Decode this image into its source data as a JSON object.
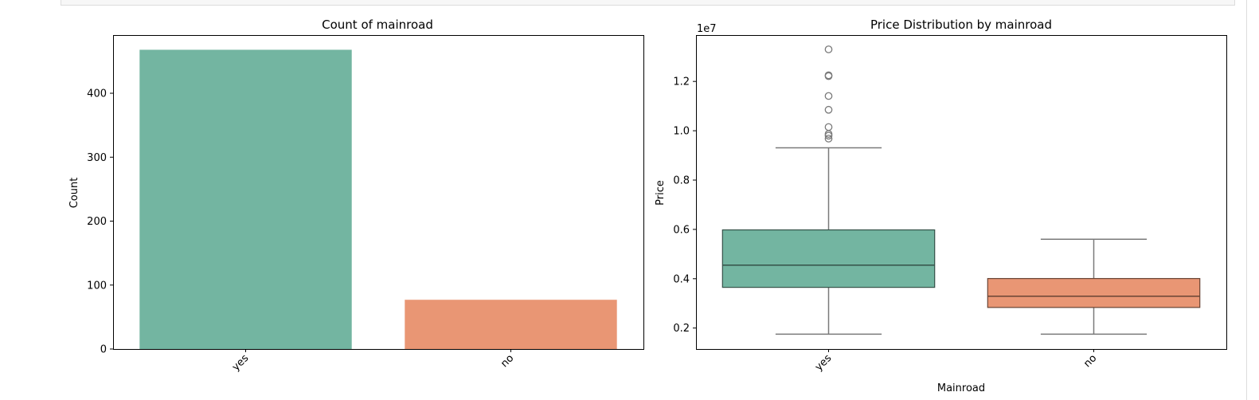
{
  "chart_data": [
    {
      "type": "bar",
      "title": "Count of mainroad",
      "xlabel": "",
      "ylabel": "Count",
      "categories": [
        "yes",
        "no"
      ],
      "values": [
        468,
        77
      ],
      "colors": [
        "#73b5a1",
        "#e99674"
      ],
      "ylim": [
        0,
        491
      ],
      "yticks": [
        0,
        100,
        200,
        300,
        400
      ],
      "ytick_labels": [
        "0",
        "100",
        "200",
        "300",
        "400"
      ],
      "grid": false
    },
    {
      "type": "box",
      "title": "Price Distribution by mainroad",
      "xlabel": "Mainroad",
      "ylabel": "Price",
      "offset_label": "1e7",
      "categories": [
        "yes",
        "no"
      ],
      "colors": [
        "#73b5a1",
        "#e99674"
      ],
      "ylim": [
        1150000,
        13880000
      ],
      "yticks": [
        2000000,
        4000000,
        6000000,
        8000000,
        10000000,
        12000000
      ],
      "ytick_labels": [
        "0.2",
        "0.4",
        "0.6",
        "0.8",
        "1.0",
        "1.2"
      ],
      "grid": false,
      "series": [
        {
          "category": "yes",
          "whisker_low": 1750000,
          "q1": 3650000,
          "median": 4550000,
          "q3": 5980000,
          "whisker_high": 9310000,
          "outliers": [
            13300000,
            12250000,
            12215000,
            11410000,
            10850000,
            10150000,
            9870000,
            9800000,
            9681000
          ]
        },
        {
          "category": "no",
          "whisker_low": 1750000,
          "q1": 2835000,
          "median": 3290000,
          "q3": 4007500,
          "whisker_high": 5600000,
          "outliers": []
        }
      ]
    }
  ]
}
